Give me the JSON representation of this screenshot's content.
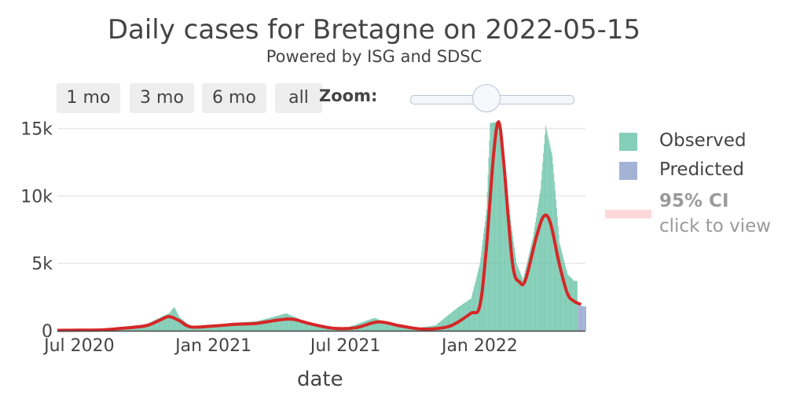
{
  "chart_data": {
    "type": "bar",
    "title": "Daily cases for Bretagne on 2022-05-15",
    "subtitle": "Powered by ISG and SDSC",
    "xlabel": "date",
    "ylabel": "",
    "ylim": [
      0,
      15500
    ],
    "xlim": [
      "2020-06-01",
      "2022-05-26"
    ],
    "x_ticks": [
      {
        "date": "2020-07-01",
        "label": "Jul 2020"
      },
      {
        "date": "2021-01-01",
        "label": "Jan 2021"
      },
      {
        "date": "2021-07-01",
        "label": "Jul 2021"
      },
      {
        "date": "2022-01-01",
        "label": "Jan 2022"
      }
    ],
    "y_ticks": [
      {
        "value": 0,
        "label": "0"
      },
      {
        "value": 5000,
        "label": "5k"
      },
      {
        "value": 10000,
        "label": "10k"
      },
      {
        "value": 15000,
        "label": "15k"
      }
    ],
    "grid": true,
    "legend_position": "right",
    "colors": {
      "observed": "#66c2a5",
      "predicted": "#8da0cb",
      "fit_line": "#d62728",
      "ci": "#fdd9d9",
      "grid": "#e8e8e8"
    },
    "series": [
      {
        "name": "Observed",
        "kind": "bars",
        "points": [
          [
            "2020-06-01",
            40
          ],
          [
            "2020-07-01",
            50
          ],
          [
            "2020-08-01",
            100
          ],
          [
            "2020-09-01",
            250
          ],
          [
            "2020-10-01",
            500
          ],
          [
            "2020-10-20",
            1000
          ],
          [
            "2020-11-01",
            1300
          ],
          [
            "2020-11-05",
            1600
          ],
          [
            "2020-11-08",
            1750
          ],
          [
            "2020-11-15",
            1000
          ],
          [
            "2020-12-01",
            300
          ],
          [
            "2021-01-01",
            400
          ],
          [
            "2021-02-01",
            600
          ],
          [
            "2021-03-01",
            700
          ],
          [
            "2021-04-01",
            1150
          ],
          [
            "2021-04-10",
            1300
          ],
          [
            "2021-05-01",
            800
          ],
          [
            "2021-06-01",
            300
          ],
          [
            "2021-07-01",
            200
          ],
          [
            "2021-08-01",
            800
          ],
          [
            "2021-08-10",
            950
          ],
          [
            "2021-09-01",
            400
          ],
          [
            "2021-10-01",
            150
          ],
          [
            "2021-11-01",
            400
          ],
          [
            "2021-12-01",
            1700
          ],
          [
            "2021-12-20",
            2400
          ],
          [
            "2022-01-01",
            5000
          ],
          [
            "2022-01-10",
            9000
          ],
          [
            "2022-01-15",
            15400
          ],
          [
            "2022-01-25",
            15500
          ],
          [
            "2022-02-05",
            11000
          ],
          [
            "2022-02-20",
            5000
          ],
          [
            "2022-03-01",
            3800
          ],
          [
            "2022-03-15",
            7000
          ],
          [
            "2022-03-25",
            10500
          ],
          [
            "2022-04-01",
            15200
          ],
          [
            "2022-04-10",
            13000
          ],
          [
            "2022-04-20",
            6500
          ],
          [
            "2022-05-01",
            4200
          ],
          [
            "2022-05-10",
            3700
          ]
        ]
      },
      {
        "name": "Predicted",
        "kind": "bars",
        "points": [
          [
            "2022-05-15",
            1900
          ],
          [
            "2022-05-20",
            1850
          ],
          [
            "2022-05-25",
            1800
          ]
        ]
      },
      {
        "kind": "line",
        "points": [
          [
            "2020-06-01",
            30
          ],
          [
            "2020-07-01",
            40
          ],
          [
            "2020-08-01",
            60
          ],
          [
            "2020-09-01",
            200
          ],
          [
            "2020-10-01",
            380
          ],
          [
            "2020-10-20",
            800
          ],
          [
            "2020-11-01",
            1050
          ],
          [
            "2020-11-15",
            750
          ],
          [
            "2020-12-01",
            280
          ],
          [
            "2021-01-01",
            350
          ],
          [
            "2021-02-01",
            480
          ],
          [
            "2021-03-01",
            550
          ],
          [
            "2021-04-01",
            800
          ],
          [
            "2021-04-20",
            850
          ],
          [
            "2021-05-15",
            500
          ],
          [
            "2021-06-15",
            180
          ],
          [
            "2021-07-15",
            220
          ],
          [
            "2021-08-15",
            650
          ],
          [
            "2021-09-15",
            350
          ],
          [
            "2021-10-15",
            120
          ],
          [
            "2021-11-15",
            250
          ],
          [
            "2021-12-01",
            600
          ],
          [
            "2021-12-20",
            1300
          ],
          [
            "2022-01-01",
            1800
          ],
          [
            "2022-01-10",
            6000
          ],
          [
            "2022-01-20",
            13000
          ],
          [
            "2022-01-27",
            15600
          ],
          [
            "2022-02-03",
            12500
          ],
          [
            "2022-02-15",
            5000
          ],
          [
            "2022-02-25",
            3600
          ],
          [
            "2022-03-05",
            3800
          ],
          [
            "2022-03-20",
            7000
          ],
          [
            "2022-03-30",
            8500
          ],
          [
            "2022-04-08",
            8000
          ],
          [
            "2022-04-20",
            5000
          ],
          [
            "2022-05-01",
            2800
          ],
          [
            "2022-05-10",
            2200
          ],
          [
            "2022-05-20",
            1950
          ]
        ]
      }
    ]
  },
  "controls": {
    "range_buttons": [
      "1 mo",
      "3 mo",
      "6 mo",
      "all"
    ],
    "zoom_label": "Zoom:"
  },
  "legend": {
    "observed": "Observed",
    "predicted": "Predicted",
    "ci_title": "95% CI",
    "ci_hint": "click to view"
  }
}
